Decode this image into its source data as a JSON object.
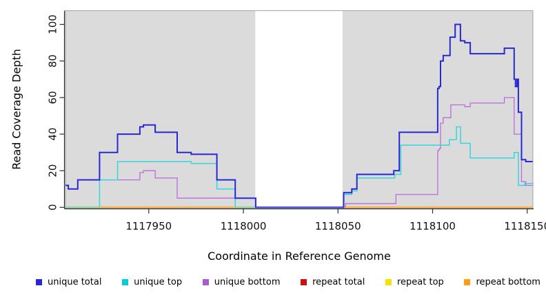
{
  "axes": {
    "y_title": "Read Coverage Depth",
    "x_title": "Coordinate in Reference Genome"
  },
  "legend": {
    "items": [
      {
        "label": "unique total",
        "color": "#2727D3"
      },
      {
        "label": "unique top",
        "color": "#00CDD7"
      },
      {
        "label": "unique bottom",
        "color": "#A75BD6"
      },
      {
        "label": "repeat total",
        "color": "#CC1111"
      },
      {
        "label": "repeat top",
        "color": "#F2E400"
      },
      {
        "label": "repeat bottom",
        "color": "#FF9D15"
      }
    ]
  },
  "chart_data": {
    "type": "line",
    "subtype": "step-coverage",
    "title": "",
    "xlabel": "Coordinate in Reference Genome",
    "ylabel": "Read Coverage Depth",
    "x_axis": {
      "range": [
        1117906,
        1118153
      ],
      "ticks": [
        1117950,
        1118000,
        1118050,
        1118100,
        1118150
      ]
    },
    "y_axis": {
      "range": [
        0,
        104
      ],
      "ticks": [
        0,
        20,
        40,
        60,
        80,
        100
      ]
    },
    "panel_bg": "#DBDBDB",
    "grid": "off",
    "legend_position": "bottom",
    "masked_region": {
      "from": 1118006.3,
      "to": 1118052.4,
      "color": "#FFFFFF"
    },
    "series_end_x": 1118152.8,
    "series": [
      {
        "name": "unique bottom",
        "color": "#BB6BDD",
        "width": 1.3,
        "points": [
          [
            1117906,
            12
          ],
          [
            1117907.5,
            10
          ],
          [
            1117912.5,
            15
          ],
          [
            1117945.3,
            19
          ],
          [
            1117947.2,
            20
          ],
          [
            1117953.4,
            16
          ],
          [
            1117965,
            5
          ],
          [
            1118006.5,
            0
          ],
          [
            1118054,
            2
          ],
          [
            1118080.6,
            7
          ],
          [
            1118102.7,
            31
          ],
          [
            1118103.4,
            32
          ],
          [
            1118104.2,
            46
          ],
          [
            1118105.6,
            49
          ],
          [
            1118109.6,
            56
          ],
          [
            1118117,
            55
          ],
          [
            1118119.9,
            57
          ],
          [
            1118137.9,
            60
          ],
          [
            1118143.1,
            40
          ],
          [
            1118147,
            14
          ],
          [
            1118149.2,
            12
          ]
        ]
      },
      {
        "name": "unique top",
        "color": "#35D6DC",
        "width": 1.5,
        "points": [
          [
            1117906,
            0
          ],
          [
            1117924,
            15
          ],
          [
            1117933.5,
            25
          ],
          [
            1117972.4,
            24
          ],
          [
            1117986,
            10
          ],
          [
            1117995.7,
            0
          ],
          [
            1118053,
            7
          ],
          [
            1118057.3,
            9
          ],
          [
            1118060,
            16
          ],
          [
            1118080,
            18
          ],
          [
            1118083.2,
            34
          ],
          [
            1118108.9,
            37
          ],
          [
            1118112.6,
            44
          ],
          [
            1118114.8,
            35
          ],
          [
            1118119.9,
            27
          ],
          [
            1118143.1,
            30
          ],
          [
            1118145.3,
            12
          ],
          [
            1118148.7,
            13
          ]
        ]
      },
      {
        "name": "unique total",
        "color": "#2727D3",
        "width": 2,
        "points": [
          [
            1117906,
            12
          ],
          [
            1117907.5,
            10
          ],
          [
            1117912.5,
            15
          ],
          [
            1117924,
            30
          ],
          [
            1117933.5,
            40
          ],
          [
            1117945.3,
            44
          ],
          [
            1117947.2,
            45
          ],
          [
            1117953.4,
            41
          ],
          [
            1117965,
            30
          ],
          [
            1117972.4,
            29
          ],
          [
            1117986,
            15
          ],
          [
            1117995.7,
            5
          ],
          [
            1118006.5,
            0
          ],
          [
            1118053,
            8
          ],
          [
            1118057.3,
            10
          ],
          [
            1118060,
            18
          ],
          [
            1118079.5,
            20
          ],
          [
            1118082.4,
            41
          ],
          [
            1118102.7,
            65
          ],
          [
            1118103.4,
            66
          ],
          [
            1118104.2,
            80
          ],
          [
            1118105.6,
            83
          ],
          [
            1118109.2,
            93
          ],
          [
            1118111.9,
            100
          ],
          [
            1118114.7,
            91
          ],
          [
            1118117,
            90
          ],
          [
            1118119.9,
            84
          ],
          [
            1118137.9,
            87
          ],
          [
            1118143.1,
            70
          ],
          [
            1118143.8,
            66
          ],
          [
            1118144.6,
            70
          ],
          [
            1118145.3,
            52
          ],
          [
            1118147,
            26
          ],
          [
            1118149.2,
            25
          ]
        ]
      }
    ],
    "zero_coverage_segments": [
      {
        "name": "zero-line-green",
        "color": "#7FCC7F",
        "from": 1117906,
        "to": 1117924
      },
      {
        "name": "zero-line-green",
        "color": "#7FCC7F",
        "from": 1117995.7,
        "to": 1118006.3
      },
      {
        "name": "zero-line-orange",
        "color": "#FF9D15",
        "from": 1117924,
        "to": 1117995.7
      },
      {
        "name": "zero-line-orange",
        "color": "#FF9D15",
        "from": 1118053,
        "to": 1118152.8
      }
    ]
  }
}
